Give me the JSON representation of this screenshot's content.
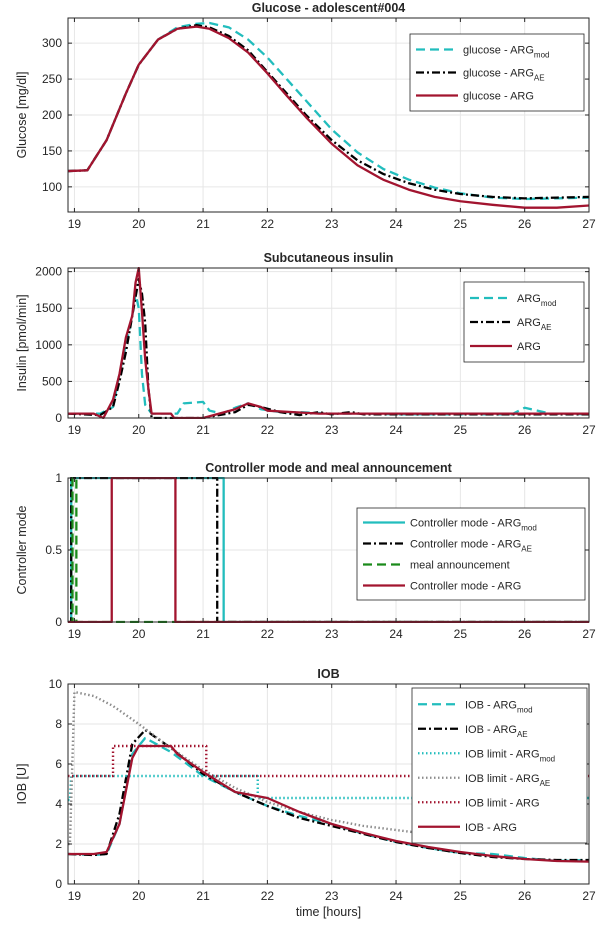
{
  "colors": {
    "mod": "#22bdbd",
    "ae": "#000000",
    "arg": "#a2142f",
    "meal": "#1a8a1a",
    "limitGray": "#8c8c8c",
    "axis": "#262626",
    "grid": "#e6e6e6"
  },
  "chart_data": [
    {
      "type": "line",
      "title": "Glucose - adolescent#004",
      "xlabel": "",
      "ylabel": "Glucose [mg/dl]",
      "xlim": [
        18.9,
        27
      ],
      "ylim": [
        65,
        335
      ],
      "xticks": [
        19,
        20,
        21,
        22,
        23,
        24,
        25,
        26,
        27
      ],
      "yticks": [
        100,
        150,
        200,
        250,
        300
      ],
      "grid": true,
      "legend_position": "top-right",
      "series": [
        {
          "name": "glucose - ARG",
          "sub": "mod",
          "color": "mod",
          "dash": "dash",
          "x": [
            18.9,
            19.2,
            19.5,
            19.8,
            20.0,
            20.3,
            20.6,
            20.9,
            21.1,
            21.4,
            21.7,
            22.0,
            22.3,
            22.6,
            23.0,
            23.4,
            23.8,
            24.2,
            24.6,
            25.0,
            25.5,
            26.0,
            26.5,
            27.0
          ],
          "y": [
            122,
            123,
            165,
            230,
            270,
            305,
            322,
            327,
            328,
            322,
            305,
            280,
            250,
            220,
            180,
            148,
            125,
            110,
            99,
            91,
            85,
            83,
            84,
            85
          ]
        },
        {
          "name": "glucose - ARG",
          "sub": "AE",
          "color": "ae",
          "dash": "dashdot",
          "x": [
            18.9,
            19.2,
            19.5,
            19.8,
            20.0,
            20.3,
            20.6,
            20.9,
            21.1,
            21.4,
            21.7,
            22.0,
            22.3,
            22.6,
            23.0,
            23.4,
            23.8,
            24.2,
            24.6,
            25.0,
            25.5,
            26.0,
            26.5,
            27.0
          ],
          "y": [
            122,
            123,
            165,
            230,
            270,
            305,
            320,
            325,
            322,
            310,
            290,
            260,
            230,
            200,
            165,
            137,
            118,
            105,
            96,
            90,
            86,
            84,
            85,
            86
          ]
        },
        {
          "name": "glucose - ARG",
          "sub": "",
          "color": "arg",
          "dash": "solid",
          "x": [
            18.9,
            19.2,
            19.5,
            19.8,
            20.0,
            20.3,
            20.6,
            20.9,
            21.1,
            21.4,
            21.7,
            22.0,
            22.3,
            22.6,
            23.0,
            23.4,
            23.8,
            24.2,
            24.6,
            25.0,
            25.5,
            26.0,
            26.5,
            27.0
          ],
          "y": [
            122,
            123,
            165,
            230,
            270,
            305,
            320,
            323,
            320,
            307,
            287,
            258,
            227,
            197,
            160,
            130,
            110,
            96,
            86,
            80,
            75,
            71,
            71,
            74
          ]
        }
      ]
    },
    {
      "type": "line",
      "title": "Subcutaneous insulin",
      "xlabel": "",
      "ylabel": "Insulin [pmol/min]",
      "xlim": [
        18.9,
        27
      ],
      "ylim": [
        0,
        2050
      ],
      "xticks": [
        19,
        20,
        21,
        22,
        23,
        24,
        25,
        26,
        27
      ],
      "yticks": [
        0,
        500,
        1000,
        1500,
        2000
      ],
      "grid": true,
      "legend_position": "top-right",
      "series": [
        {
          "name": "ARG",
          "sub": "mod",
          "color": "mod",
          "dash": "dash",
          "x": [
            18.9,
            19.4,
            19.6,
            19.7,
            19.8,
            19.9,
            19.95,
            20.0,
            20.05,
            20.1,
            20.2,
            20.6,
            20.7,
            21.0,
            21.1,
            21.3,
            21.5,
            21.7,
            21.9,
            22.2,
            22.5,
            23.0,
            23.5,
            24.0,
            25.0,
            25.8,
            26.0,
            26.4,
            27.0
          ],
          "y": [
            60,
            60,
            150,
            600,
            1000,
            1400,
            1700,
            1500,
            600,
            180,
            60,
            60,
            200,
            220,
            100,
            60,
            140,
            200,
            120,
            80,
            80,
            60,
            60,
            50,
            50,
            50,
            140,
            60,
            50
          ]
        },
        {
          "name": "ARG",
          "sub": "AE",
          "color": "ae",
          "dash": "dashdot",
          "x": [
            18.9,
            19.4,
            19.6,
            19.7,
            19.8,
            19.9,
            20.0,
            20.05,
            20.1,
            20.15,
            20.2,
            20.6,
            21.0,
            21.5,
            21.7,
            21.9,
            22.2,
            22.5,
            22.8,
            23.0,
            23.3,
            23.5,
            24.0,
            25.0,
            26.0,
            27.0
          ],
          "y": [
            60,
            40,
            150,
            500,
            900,
            1400,
            1900,
            1700,
            1300,
            400,
            0,
            0,
            0,
            80,
            180,
            150,
            80,
            40,
            80,
            50,
            80,
            50,
            50,
            50,
            50,
            50
          ],
          "hidden_marks_note": ""
        },
        {
          "name": "ARG",
          "sub": "",
          "color": "arg",
          "dash": "solid",
          "x": [
            18.9,
            19.0,
            19.3,
            19.45,
            19.6,
            19.7,
            19.8,
            19.9,
            19.95,
            20.0,
            20.05,
            20.1,
            20.15,
            20.2,
            20.5,
            20.55,
            21.0,
            21.5,
            21.7,
            21.9,
            22.0,
            22.4,
            22.8,
            23.2,
            23.6,
            24.0,
            25.0,
            26.0,
            27.0
          ],
          "y": [
            60,
            60,
            60,
            0,
            250,
            600,
            1100,
            1400,
            1850,
            2050,
            1450,
            800,
            400,
            60,
            60,
            0,
            0,
            120,
            200,
            150,
            100,
            80,
            60,
            60,
            60,
            60,
            60,
            60,
            60
          ]
        }
      ]
    },
    {
      "type": "line",
      "title": "Controller mode and meal announcement",
      "xlabel": "",
      "ylabel": "Controller mode",
      "xlim": [
        18.9,
        27
      ],
      "ylim": [
        0,
        1
      ],
      "xticks": [
        19,
        20,
        21,
        22,
        23,
        24,
        25,
        26,
        27
      ],
      "yticks": [
        0,
        0.5,
        1
      ],
      "grid": true,
      "legend_position": "top-right",
      "series": [
        {
          "name": "Controller mode - ARG",
          "sub": "mod",
          "color": "mod",
          "dash": "solid",
          "x": [
            18.9,
            18.95,
            18.95,
            21.32,
            21.32,
            27.0
          ],
          "y": [
            0,
            0,
            1,
            1,
            0,
            0
          ]
        },
        {
          "name": "Controller mode - ARG",
          "sub": "AE",
          "color": "ae",
          "dash": "dashdot",
          "x": [
            18.9,
            18.95,
            18.95,
            21.22,
            21.22,
            27.0
          ],
          "y": [
            0,
            0,
            1,
            1,
            0,
            0
          ]
        },
        {
          "name": "meal announcement",
          "sub": "",
          "color": "meal",
          "dash": "dash",
          "x": [
            18.9,
            18.97,
            18.97,
            19.03,
            19.03,
            27.0
          ],
          "y": [
            0,
            0,
            1,
            1,
            0,
            0
          ]
        },
        {
          "name": "Controller mode - ARG",
          "sub": "",
          "color": "arg",
          "dash": "solid",
          "x": [
            18.9,
            19.58,
            19.58,
            20.57,
            20.57,
            27.0
          ],
          "y": [
            0,
            0,
            1,
            1,
            0,
            0
          ]
        }
      ]
    },
    {
      "type": "line",
      "title": "IOB",
      "xlabel": "time [hours]",
      "ylabel": "IOB [U]",
      "xlim": [
        18.9,
        27
      ],
      "ylim": [
        0,
        10
      ],
      "xticks": [
        19,
        20,
        21,
        22,
        23,
        24,
        25,
        26,
        27
      ],
      "yticks": [
        0,
        2,
        4,
        6,
        8,
        10
      ],
      "grid": true,
      "legend_position": "top-right",
      "series": [
        {
          "name": "IOB - ARG",
          "sub": "mod",
          "color": "mod",
          "dash": "dash",
          "x": [
            18.9,
            19.3,
            19.5,
            19.7,
            19.9,
            20.1,
            20.5,
            21.0,
            21.5,
            22.0,
            22.5,
            23.0,
            23.5,
            24.0,
            24.5,
            25.0,
            25.5,
            26.0,
            26.5,
            27.0
          ],
          "y": [
            1.5,
            1.45,
            1.5,
            3.0,
            6.5,
            7.3,
            6.6,
            5.4,
            4.6,
            3.9,
            3.4,
            3.0,
            2.5,
            2.1,
            1.8,
            1.55,
            1.5,
            1.3,
            1.15,
            1.2
          ]
        },
        {
          "name": "IOB - ARG",
          "sub": "AE",
          "color": "ae",
          "dash": "dashdot",
          "x": [
            18.9,
            19.3,
            19.5,
            19.7,
            19.9,
            20.1,
            20.5,
            21.0,
            21.5,
            22.0,
            22.5,
            23.0,
            23.5,
            24.0,
            24.5,
            25.0,
            25.5,
            26.0,
            26.5,
            27.0
          ],
          "y": [
            1.5,
            1.45,
            1.5,
            3.5,
            7.0,
            7.7,
            6.8,
            5.5,
            4.6,
            3.9,
            3.3,
            2.9,
            2.5,
            2.1,
            1.8,
            1.55,
            1.35,
            1.25,
            1.2,
            1.2
          ]
        },
        {
          "name": "IOB limit - ARG",
          "sub": "mod",
          "color": "mod",
          "dash": "dot",
          "x": [
            18.9,
            18.93,
            18.95,
            21.85,
            21.85,
            27.0
          ],
          "y": [
            4.2,
            4.2,
            5.4,
            5.4,
            4.3,
            4.3
          ]
        },
        {
          "name": "IOB limit - ARG",
          "sub": "AE",
          "color": "limitGray",
          "dash": "dot",
          "x": [
            18.9,
            18.93,
            19.0,
            19.3,
            19.6,
            20.0,
            20.5,
            21.0,
            21.5,
            22.0,
            22.5,
            23.0,
            23.5,
            24.0,
            24.5,
            25.0,
            25.5,
            26.0,
            26.5,
            27.0
          ],
          "y": [
            2.0,
            2.0,
            9.6,
            9.4,
            8.9,
            8.0,
            6.8,
            5.7,
            4.8,
            4.1,
            3.6,
            3.2,
            2.9,
            2.7,
            2.5,
            2.4,
            2.3,
            2.2,
            2.15,
            2.1
          ]
        },
        {
          "name": "IOB limit - ARG",
          "sub": "",
          "color": "arg",
          "dash": "dot",
          "x": [
            18.9,
            19.6,
            19.6,
            21.05,
            21.05,
            27.0
          ],
          "y": [
            5.4,
            5.4,
            6.9,
            6.9,
            5.4,
            5.4
          ]
        },
        {
          "name": "IOB - ARG",
          "sub": "",
          "color": "arg",
          "dash": "solid",
          "x": [
            18.9,
            19.3,
            19.5,
            19.7,
            19.9,
            20.0,
            20.5,
            20.6,
            21.0,
            21.5,
            22.0,
            22.5,
            23.0,
            23.5,
            24.0,
            24.5,
            25.0,
            25.5,
            26.0,
            26.5,
            27.0
          ],
          "y": [
            1.5,
            1.5,
            1.6,
            3.0,
            6.3,
            6.9,
            6.9,
            6.5,
            5.6,
            4.6,
            4.3,
            3.6,
            3.0,
            2.55,
            2.15,
            1.85,
            1.6,
            1.4,
            1.25,
            1.15,
            1.12
          ]
        }
      ]
    }
  ]
}
